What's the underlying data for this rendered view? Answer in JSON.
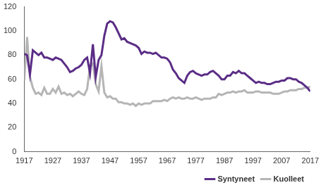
{
  "chart_data": {
    "type": "line",
    "x": [
      1917,
      1918,
      1919,
      1920,
      1921,
      1922,
      1923,
      1924,
      1925,
      1926,
      1927,
      1928,
      1929,
      1930,
      1931,
      1932,
      1933,
      1934,
      1935,
      1936,
      1937,
      1938,
      1939,
      1940,
      1941,
      1942,
      1943,
      1944,
      1945,
      1946,
      1947,
      1948,
      1949,
      1950,
      1951,
      1952,
      1953,
      1954,
      1955,
      1956,
      1957,
      1958,
      1959,
      1960,
      1961,
      1962,
      1963,
      1964,
      1965,
      1966,
      1967,
      1968,
      1969,
      1970,
      1971,
      1972,
      1973,
      1974,
      1975,
      1976,
      1977,
      1978,
      1979,
      1980,
      1981,
      1982,
      1983,
      1984,
      1985,
      1986,
      1987,
      1988,
      1989,
      1990,
      1991,
      1992,
      1993,
      1994,
      1995,
      1996,
      1997,
      1998,
      1999,
      2000,
      2001,
      2002,
      2003,
      2004,
      2005,
      2006,
      2007,
      2008,
      2009,
      2010,
      2011,
      2012,
      2013,
      2014,
      2015,
      2016,
      2017
    ],
    "series": [
      {
        "name": "Syntyneet",
        "color": "#5b2d86",
        "values": [
          81,
          80,
          64,
          84,
          82,
          80,
          82,
          78,
          78,
          77,
          76,
          78,
          77,
          76,
          73,
          70,
          66,
          67,
          69,
          70,
          72,
          76,
          78,
          65,
          89,
          62,
          76,
          80,
          96,
          106,
          108,
          107,
          103,
          98,
          93,
          94,
          91,
          90,
          89,
          88,
          86,
          81,
          83,
          82,
          82,
          81,
          82,
          80,
          78,
          78,
          77,
          74,
          68,
          65,
          61,
          59,
          57,
          63,
          66,
          67,
          65,
          64,
          63,
          64,
          64,
          66,
          67,
          65,
          63,
          60,
          60,
          63,
          63,
          66,
          65,
          67,
          65,
          65,
          63,
          61,
          59,
          57,
          58,
          57,
          57,
          56,
          56,
          57,
          58,
          58,
          59,
          59,
          61,
          61,
          60,
          60,
          58,
          57,
          55,
          53,
          50
        ]
      },
      {
        "name": "Kuolleet",
        "color": "#b5b5b5",
        "values": [
          59,
          95,
          62,
          53,
          48,
          49,
          47,
          53,
          48,
          48,
          52,
          49,
          54,
          48,
          49,
          47,
          48,
          46,
          48,
          50,
          48,
          47,
          52,
          71,
          73,
          56,
          50,
          71,
          49,
          45,
          46,
          44,
          44,
          41,
          41,
          40,
          40,
          39,
          40,
          38,
          40,
          39,
          40,
          40,
          40,
          42,
          42,
          42,
          42,
          43,
          42,
          44,
          45,
          44,
          45,
          44,
          44,
          45,
          44,
          44,
          45,
          44,
          43,
          44,
          44,
          44,
          45,
          45,
          48,
          47,
          48,
          49,
          49,
          50,
          49,
          50,
          50,
          51,
          49,
          49,
          49,
          50,
          50,
          49,
          49,
          49,
          49,
          48,
          48,
          48,
          49,
          50,
          50,
          51,
          51,
          51,
          52,
          52,
          53,
          53,
          54
        ]
      }
    ],
    "xlim": [
      1917,
      2017
    ],
    "xticks": [
      1917,
      1927,
      1937,
      1947,
      1957,
      1967,
      1977,
      1987,
      1997,
      2007,
      2017
    ],
    "ylim": [
      0,
      120
    ],
    "yticks": [
      0,
      20,
      40,
      60,
      80,
      100,
      120
    ],
    "grid": false,
    "legend": "lower right"
  }
}
